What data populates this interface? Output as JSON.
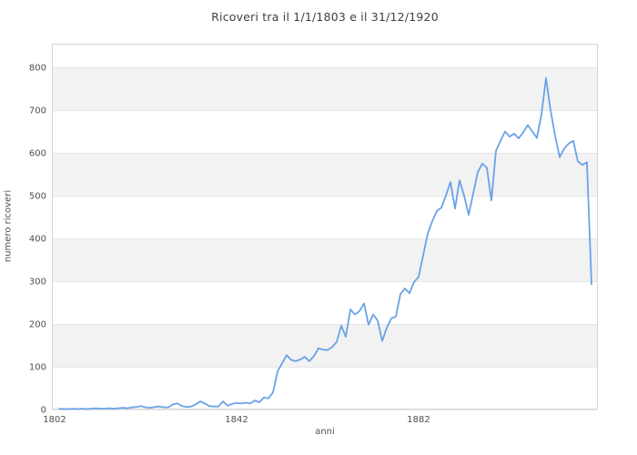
{
  "chart_data": {
    "type": "line",
    "title": "Ricoveri tra il 1/1/1803 e il 31/12/1920",
    "xlabel": "anni",
    "ylabel": "numero ricoveri",
    "xticks": [
      1802,
      1842,
      1882
    ],
    "yticks": [
      0,
      100,
      200,
      300,
      400,
      500,
      600,
      700,
      800
    ],
    "xlim": [
      1801.4,
      1921.4
    ],
    "ylim": [
      0,
      855
    ],
    "grid": "horizontal-bands",
    "legend": "none",
    "band_ranges": [
      [
        100,
        200
      ],
      [
        300,
        400
      ],
      [
        500,
        600
      ],
      [
        700,
        800
      ]
    ],
    "colors": {
      "line": "#6aa2e8",
      "band": "#f2f2f2",
      "gridline": "#e6e6e6",
      "border": "#d6d6d6",
      "title_text": "#3f3f3f",
      "tick_text": "#4f4f4f"
    },
    "series": [
      {
        "name": "ricoveri",
        "x": [
          1803,
          1804,
          1805,
          1806,
          1807,
          1808,
          1809,
          1810,
          1811,
          1812,
          1813,
          1814,
          1815,
          1816,
          1817,
          1818,
          1819,
          1820,
          1821,
          1822,
          1823,
          1824,
          1825,
          1826,
          1827,
          1828,
          1829,
          1830,
          1831,
          1832,
          1833,
          1834,
          1835,
          1836,
          1837,
          1838,
          1839,
          1840,
          1841,
          1842,
          1843,
          1844,
          1845,
          1846,
          1847,
          1848,
          1849,
          1850,
          1851,
          1852,
          1853,
          1854,
          1855,
          1856,
          1857,
          1858,
          1859,
          1860,
          1861,
          1862,
          1863,
          1864,
          1865,
          1866,
          1867,
          1868,
          1869,
          1870,
          1871,
          1872,
          1873,
          1874,
          1875,
          1876,
          1877,
          1878,
          1879,
          1880,
          1881,
          1882,
          1883,
          1884,
          1885,
          1886,
          1887,
          1888,
          1889,
          1890,
          1891,
          1892,
          1893,
          1894,
          1895,
          1896,
          1897,
          1898,
          1899,
          1900,
          1901,
          1902,
          1903,
          1904,
          1905,
          1906,
          1907,
          1908,
          1909,
          1910,
          1911,
          1912,
          1913,
          1914,
          1915,
          1916,
          1917,
          1918,
          1919,
          1920
        ],
        "values": [
          2,
          1,
          1,
          2,
          1,
          2,
          1,
          2,
          3,
          2,
          2,
          3,
          2,
          3,
          4,
          3,
          5,
          6,
          8,
          5,
          4,
          6,
          7,
          5,
          5,
          12,
          14,
          8,
          6,
          7,
          12,
          19,
          14,
          8,
          7,
          7,
          19,
          9,
          13,
          15,
          14,
          16,
          14,
          21,
          17,
          28,
          26,
          40,
          89,
          108,
          127,
          116,
          113,
          117,
          123,
          113,
          125,
          143,
          140,
          139,
          146,
          158,
          196,
          170,
          234,
          222,
          230,
          248,
          198,
          222,
          208,
          160,
          191,
          213,
          217,
          270,
          283,
          272,
          298,
          310,
          360,
          411,
          440,
          464,
          472,
          500,
          532,
          470,
          536,
          500,
          455,
          505,
          555,
          575,
          565,
          489,
          605,
          628,
          650,
          638,
          645,
          634,
          648,
          665,
          650,
          635,
          690,
          775,
          700,
          640,
          590,
          610,
          622,
          628,
          580,
          572,
          578,
          293
        ]
      }
    ]
  }
}
